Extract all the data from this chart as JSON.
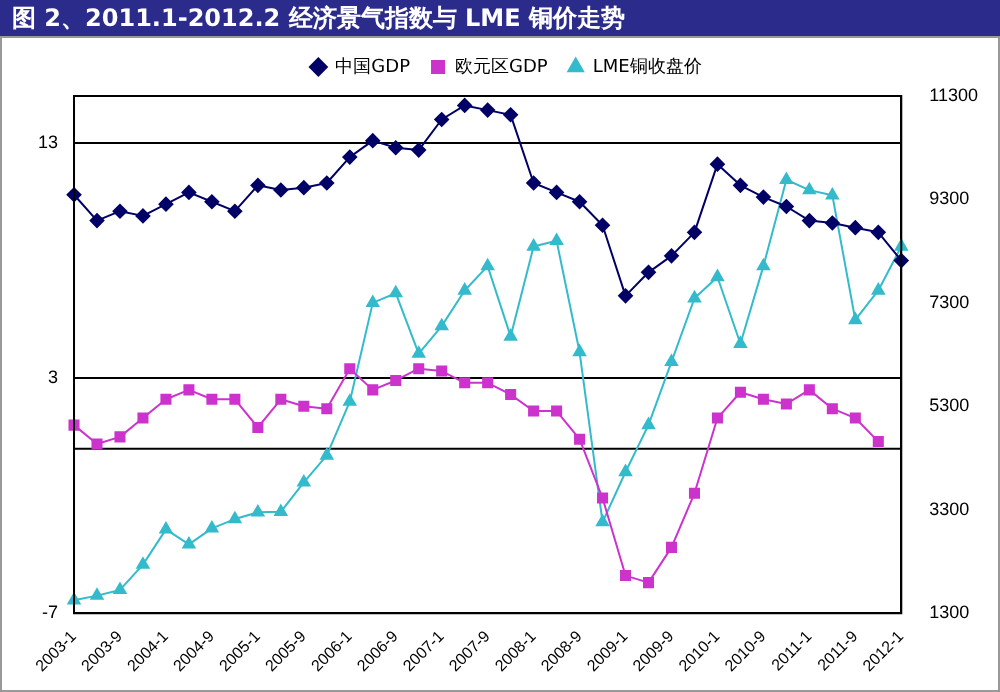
{
  "chart_data": {
    "type": "line",
    "title": "图 2、2011.1-2012.2 经济景气指数与 LME 铜价走势",
    "categories": [
      "2003-1",
      null,
      "2003-9",
      null,
      "2004-1",
      null,
      "2004-9",
      null,
      "2005-1",
      null,
      "2005-9",
      null,
      "2006-1",
      null,
      "2006-9",
      null,
      "2007-1",
      null,
      "2007-9",
      null,
      "2008-1",
      null,
      "2008-9",
      null,
      "2009-1",
      null,
      "2009-9",
      null,
      "2010-1",
      null,
      "2010-9",
      null,
      "2011-1",
      null,
      "2011-9",
      null,
      "2012-1"
    ],
    "series": [
      {
        "name": "中国GDP",
        "color": "#000066",
        "marker": "diamond",
        "values": [
          10.8,
          9.7,
          10.1,
          9.9,
          10.4,
          10.9,
          10.5,
          10.1,
          11.2,
          11.0,
          11.1,
          11.3,
          12.4,
          13.1,
          12.8,
          12.7,
          14.0,
          14.6,
          14.4,
          14.2,
          11.3,
          10.9,
          10.5,
          9.5,
          6.5,
          7.5,
          8.2,
          9.2,
          12.1,
          11.2,
          10.7,
          10.3,
          9.7,
          9.6,
          9.4,
          9.2,
          8.0
        ]
      },
      {
        "name": "欧元区GDP",
        "color": "#cc33cc",
        "marker": "square",
        "values": [
          1.0,
          0.2,
          0.5,
          1.3,
          2.1,
          2.5,
          2.1,
          2.1,
          0.9,
          2.1,
          1.8,
          1.7,
          3.4,
          2.5,
          2.9,
          3.4,
          3.3,
          2.8,
          2.8,
          2.3,
          1.6,
          1.6,
          0.4,
          -2.1,
          -5.4,
          -5.7,
          -4.2,
          -1.9,
          1.3,
          2.4,
          2.1,
          1.9,
          2.5,
          1.7,
          1.3,
          0.3,
          null
        ]
      },
      {
        "name": "LME铜收盘价",
        "color": "#33bbcc",
        "marker": "triangle",
        "axis": "y2",
        "values": [
          1550,
          1640,
          1750,
          2240,
          2920,
          2630,
          2940,
          3120,
          3250,
          3260,
          3830,
          4350,
          5390,
          7300,
          7490,
          6320,
          6850,
          7540,
          8010,
          6650,
          8390,
          8500,
          6350,
          3060,
          4030,
          4940,
          6160,
          7390,
          7800,
          6510,
          8010,
          9680,
          9480,
          9380,
          6970,
          7540,
          8390
        ]
      }
    ],
    "ylim": [
      -7,
      15
    ],
    "yticks": [
      -7,
      3,
      13
    ],
    "y2lim": [
      1300,
      11300
    ],
    "y2ticks": [
      1300,
      3300,
      5300,
      7300,
      9300,
      11300
    ],
    "ref_lines": [
      {
        "axis": "y",
        "value": 0,
        "color": "#000000"
      }
    ],
    "grid": "y",
    "legend": "top"
  }
}
